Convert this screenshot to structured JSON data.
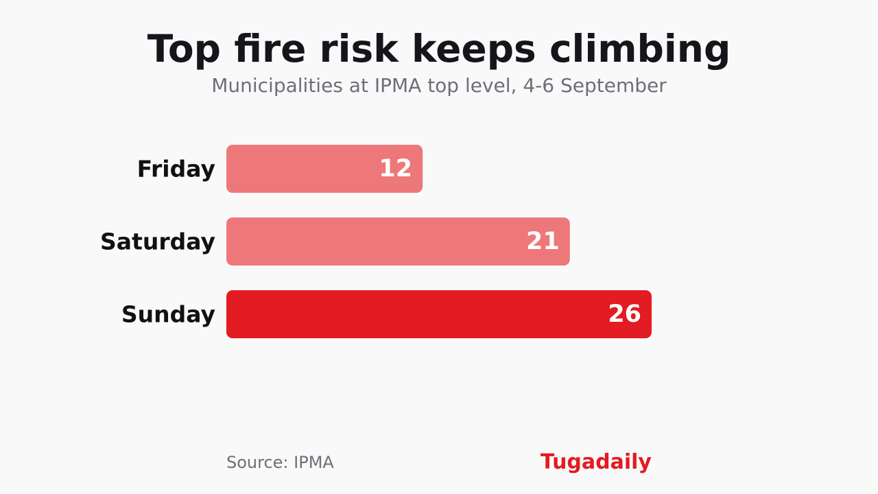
{
  "chart_data": {
    "type": "bar",
    "orientation": "horizontal",
    "title": "Top fire risk keeps climbing",
    "subtitle": "Municipalities at IPMA top level, 4-6 September",
    "categories": [
      "Friday",
      "Saturday",
      "Sunday"
    ],
    "values": [
      12,
      21,
      26
    ],
    "bar_colors": [
      "#ee7779",
      "#ee7779",
      "#e31b23"
    ],
    "xlim": [
      0,
      26
    ],
    "grid": false,
    "legend": "none",
    "source": "Source: IPMA"
  },
  "brand": {
    "name": "Tugadaily",
    "color": "#e31b23"
  }
}
